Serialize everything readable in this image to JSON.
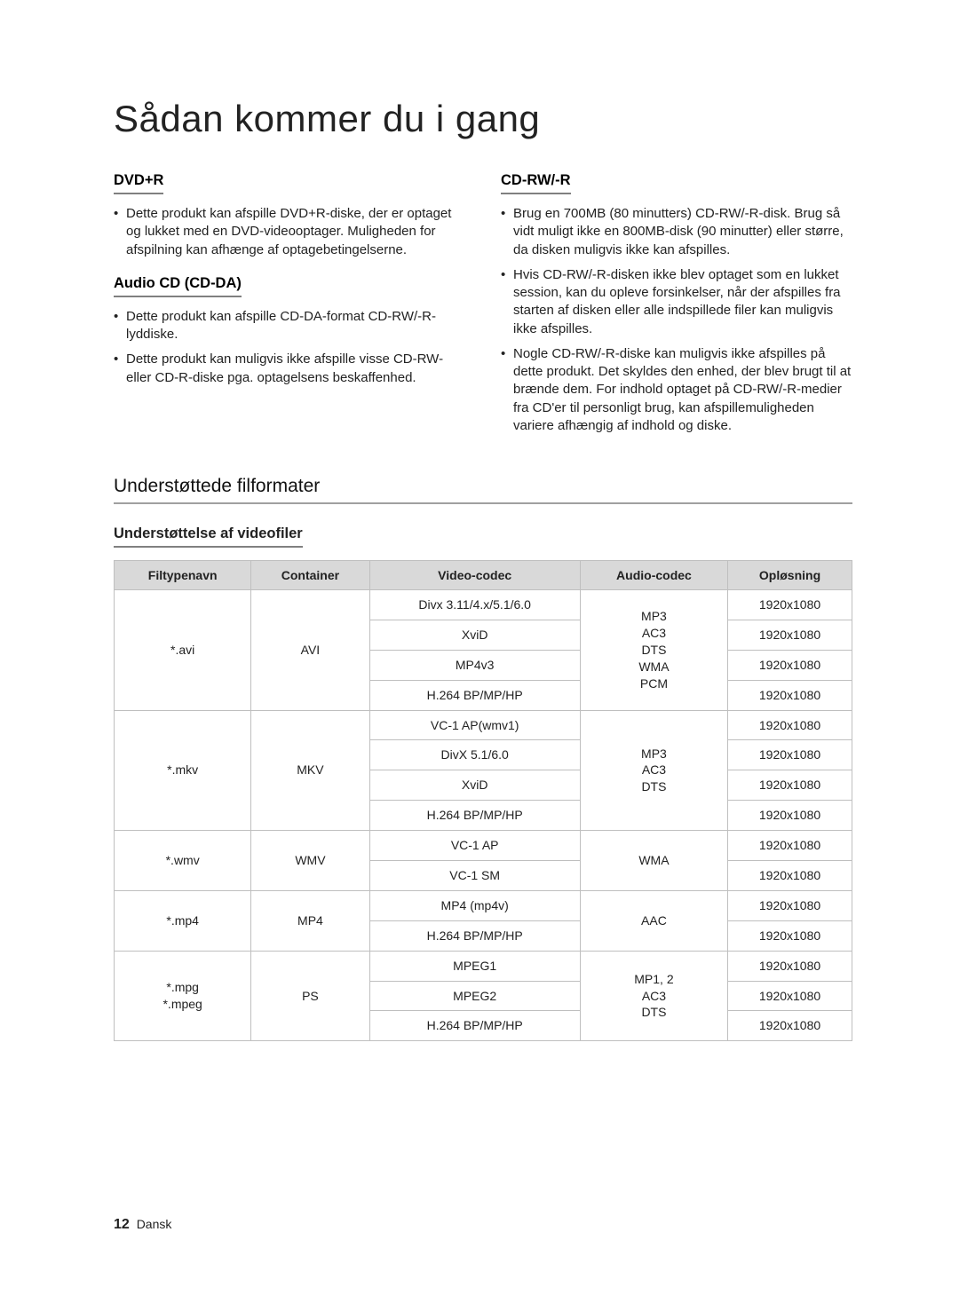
{
  "title": "Sådan kommer du i gang",
  "left": {
    "dvd_r": {
      "heading": "DVD+R",
      "items": [
        "Dette produkt kan afspille DVD+R-diske, der er optaget og lukket med en DVD-videooptager. Muligheden for afspilning kan afhænge af optagebetingelserne."
      ]
    },
    "audio_cd": {
      "heading": "Audio CD (CD-DA)",
      "items": [
        "Dette produkt kan afspille CD-DA-format CD-RW/-R-lyddiske.",
        "Dette produkt kan muligvis ikke afspille visse CD-RW- eller CD-R-diske pga. optagelsens beskaffenhed."
      ]
    }
  },
  "right": {
    "cd_rw": {
      "heading": "CD-RW/-R",
      "items": [
        "Brug en 700MB (80 minutters) CD-RW/-R-disk. Brug så vidt muligt ikke en 800MB-disk (90 minutter) eller større, da disken muligvis ikke kan afspilles.",
        "Hvis CD-RW/-R-disken ikke blev optaget som en lukket session, kan du opleve forsinkelser, når der afspilles fra starten af disken eller alle indspillede filer kan muligvis ikke afspilles.",
        "Nogle CD-RW/-R-diske kan muligvis ikke afspilles på dette produkt. Det skyldes den enhed, der blev brugt til at brænde dem. For indhold optaget på CD-RW/-R-medier fra CD'er til personligt brug, kan afspillemuligheden variere afhængig af indhold og diske."
      ]
    }
  },
  "formats_section": "Understøttede filformater",
  "video_support": "Understøttelse af videofiler",
  "table": {
    "headers": [
      "Filtypenavn",
      "Container",
      "Video-codec",
      "Audio-codec",
      "Opløsning"
    ],
    "groups": [
      {
        "ext": "*.avi",
        "container": "AVI",
        "audio": "MP3\nAC3\nDTS\nWMA\nPCM",
        "rows": [
          {
            "vcodec": "Divx 3.11/4.x/5.1/6.0",
            "res": "1920x1080"
          },
          {
            "vcodec": "XviD",
            "res": "1920x1080"
          },
          {
            "vcodec": "MP4v3",
            "res": "1920x1080"
          },
          {
            "vcodec": "H.264 BP/MP/HP",
            "res": "1920x1080"
          }
        ]
      },
      {
        "ext": "*.mkv",
        "container": "MKV",
        "audio": "MP3\nAC3\nDTS",
        "rows": [
          {
            "vcodec": "VC-1 AP(wmv1)",
            "res": "1920x1080"
          },
          {
            "vcodec": "DivX 5.1/6.0",
            "res": "1920x1080"
          },
          {
            "vcodec": "XviD",
            "res": "1920x1080"
          },
          {
            "vcodec": "H.264 BP/MP/HP",
            "res": "1920x1080"
          }
        ]
      },
      {
        "ext": "*.wmv",
        "container": "WMV",
        "audio": "WMA",
        "rows": [
          {
            "vcodec": "VC-1 AP",
            "res": "1920x1080"
          },
          {
            "vcodec": "VC-1 SM",
            "res": "1920x1080"
          }
        ]
      },
      {
        "ext": "*.mp4",
        "container": "MP4",
        "audio": "AAC",
        "rows": [
          {
            "vcodec": "MP4 (mp4v)",
            "res": "1920x1080"
          },
          {
            "vcodec": "H.264 BP/MP/HP",
            "res": "1920x1080"
          }
        ]
      },
      {
        "ext": "*.mpg\n*.mpeg",
        "container": "PS",
        "audio": "MP1, 2\nAC3\nDTS",
        "rows": [
          {
            "vcodec": "MPEG1",
            "res": "1920x1080"
          },
          {
            "vcodec": "MPEG2",
            "res": "1920x1080"
          },
          {
            "vcodec": "H.264 BP/MP/HP",
            "res": "1920x1080"
          }
        ]
      }
    ]
  },
  "footer": {
    "page": "12",
    "lang": "Dansk"
  }
}
